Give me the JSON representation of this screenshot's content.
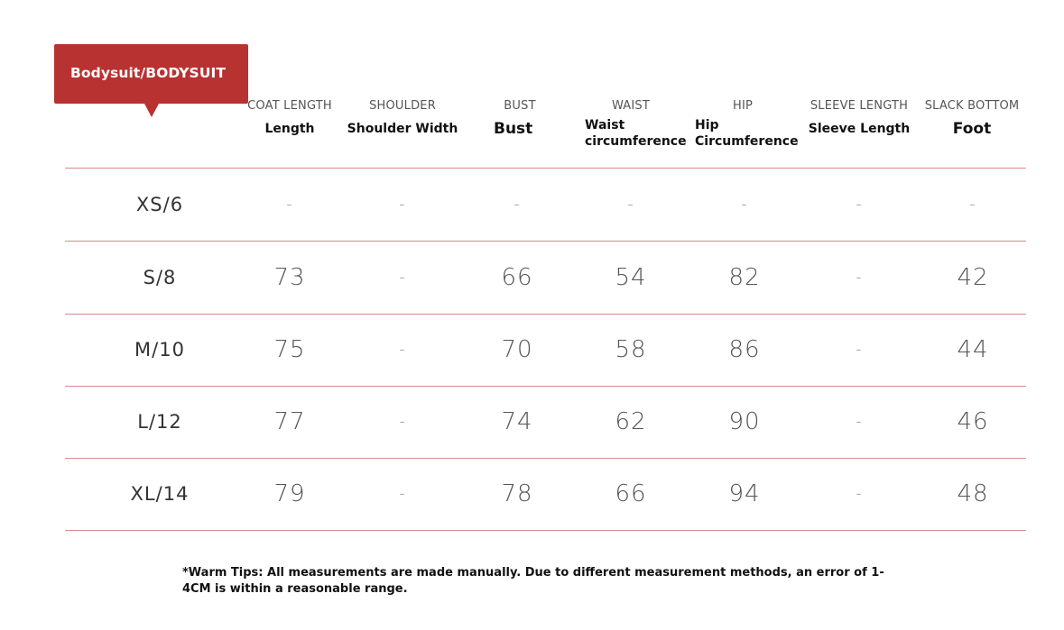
{
  "badge": {
    "label": "Bodysuit/BODYSUIT",
    "color": "#b83232"
  },
  "columns": [
    {
      "en": "COAT LENGTH",
      "cn": "Length"
    },
    {
      "en": "SHOULDER",
      "cn": "Shoulder Width"
    },
    {
      "en": "BUST",
      "cn": "Bust"
    },
    {
      "en": "WAIST",
      "cn": "Waist circumference"
    },
    {
      "en": "HIP",
      "cn": "Hip Circumference"
    },
    {
      "en": "SLEEVE LENGTH",
      "cn": "Sleeve Length"
    },
    {
      "en": "SLACK BOTTOM",
      "cn": "Foot"
    }
  ],
  "rows": [
    {
      "size": "XS/6",
      "values": [
        "-",
        "-",
        "-",
        "-",
        "-",
        "-",
        "-"
      ]
    },
    {
      "size": "S/8",
      "values": [
        "73",
        "-",
        "66",
        "54",
        "82",
        "-",
        "42"
      ]
    },
    {
      "size": "M/10",
      "values": [
        "75",
        "-",
        "70",
        "58",
        "86",
        "-",
        "44"
      ]
    },
    {
      "size": "L/12",
      "values": [
        "77",
        "-",
        "74",
        "62",
        "90",
        "-",
        "46"
      ]
    },
    {
      "size": "XL/14",
      "values": [
        "79",
        "-",
        "78",
        "66",
        "94",
        "-",
        "48"
      ]
    }
  ],
  "note": "*Warm Tips: All measurements are made manually. Due to different measurement methods, an error of 1-4CM is within a reasonable range.",
  "colors": {
    "rule": "#d98b8b"
  }
}
